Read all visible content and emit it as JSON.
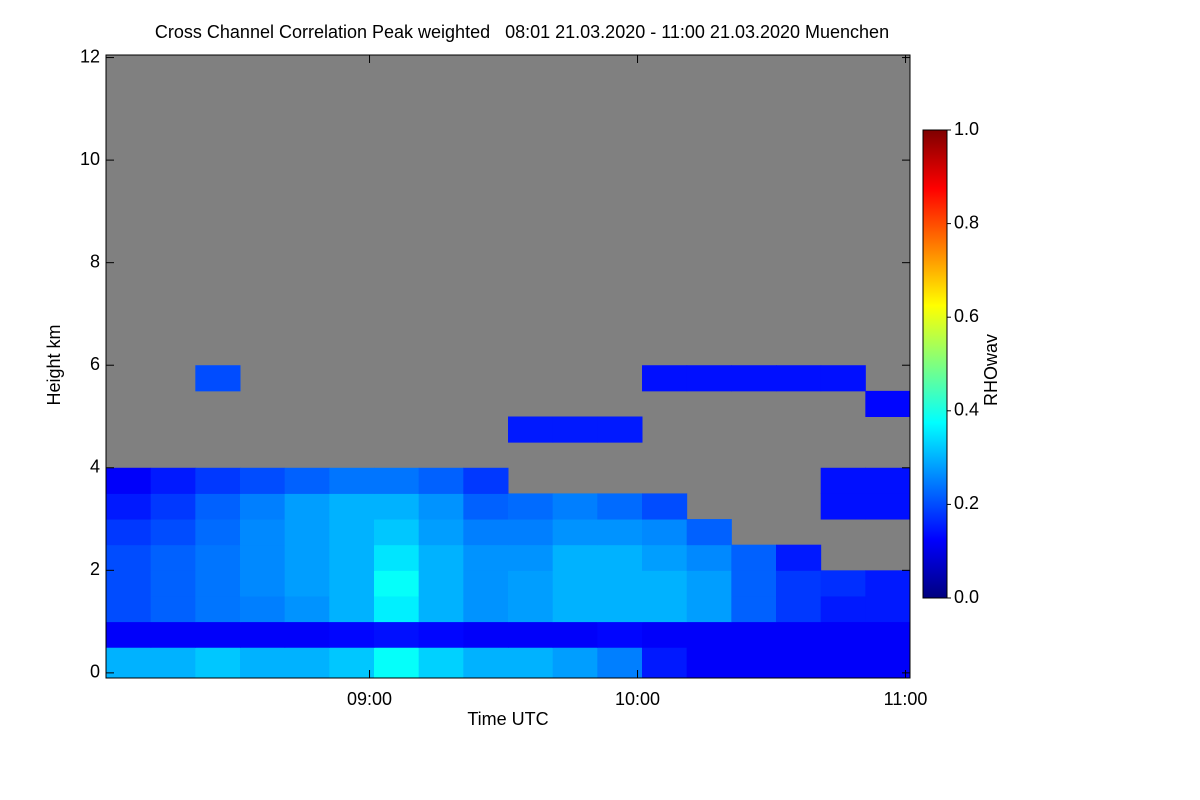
{
  "chart_data": {
    "type": "heatmap",
    "title": "Cross Channel Correlation Peak weighted   08:01 21.03.2020 - 11:00 21.03.2020 Muenchen",
    "xlabel": "Time UTC",
    "ylabel": "Height km",
    "colorbar_label": "RHOwav",
    "xlim": [
      481,
      661
    ],
    "ylim": [
      -0.1,
      12.05
    ],
    "xticks": [
      {
        "value": 540,
        "label": "09:00"
      },
      {
        "value": 600,
        "label": "10:00"
      },
      {
        "value": 660,
        "label": "11:00"
      }
    ],
    "yticks": [
      0,
      2,
      4,
      6,
      8,
      10,
      12
    ],
    "clim": [
      0,
      1
    ],
    "cticks": [
      {
        "value": 0,
        "label": "0.0"
      },
      {
        "value": 0.2,
        "label": "0.2"
      },
      {
        "value": 0.4,
        "label": "0.4"
      },
      {
        "value": 0.6,
        "label": "0.6"
      },
      {
        "value": 0.8,
        "label": "0.8"
      },
      {
        "value": 1,
        "label": "1.0"
      }
    ],
    "colormap": [
      "#00007f",
      "#0000ff",
      "#007fff",
      "#00ffff",
      "#7fff7f",
      "#ffff00",
      "#ff7f00",
      "#ff0000",
      "#7f0000"
    ],
    "missing_color": "#808080",
    "xbins": [
      481,
      491,
      501,
      511,
      521,
      531,
      541,
      551,
      561,
      571,
      581,
      591,
      601,
      611,
      621,
      631,
      641,
      651,
      661
    ],
    "ybins": [
      -0.1,
      0.5,
      1,
      1.5,
      2,
      2.5,
      3,
      3.5,
      4,
      4.5,
      5,
      5.5,
      6,
      6.5,
      7,
      7.5,
      8,
      8.5,
      9,
      9.5,
      10,
      10.5,
      11,
      11.5,
      12.05
    ],
    "z": [
      [
        0.3,
        0.3,
        0.32,
        0.3,
        0.3,
        0.32,
        0.38,
        0.33,
        0.3,
        0.3,
        0.28,
        0.25,
        0.15,
        0.12,
        0.12,
        0.12,
        0.12,
        0.12
      ],
      [
        0.12,
        0.12,
        0.12,
        0.12,
        0.12,
        0.13,
        0.14,
        0.13,
        0.12,
        0.12,
        0.12,
        0.13,
        0.12,
        0.12,
        0.12,
        0.12,
        0.12,
        0.12
      ],
      [
        0.2,
        0.22,
        0.24,
        0.25,
        0.27,
        0.3,
        0.36,
        0.3,
        0.27,
        0.28,
        0.3,
        0.3,
        0.3,
        0.28,
        0.22,
        0.18,
        0.15,
        0.15
      ],
      [
        0.2,
        0.22,
        0.24,
        0.26,
        0.28,
        0.3,
        0.38,
        0.3,
        0.27,
        0.28,
        0.3,
        0.3,
        0.3,
        0.28,
        0.22,
        0.18,
        0.17,
        0.15
      ],
      [
        0.2,
        0.22,
        0.24,
        0.26,
        0.28,
        0.3,
        0.35,
        0.3,
        0.27,
        0.27,
        0.3,
        0.3,
        0.28,
        0.26,
        0.22,
        0.15,
        null,
        null
      ],
      [
        0.18,
        0.2,
        0.23,
        0.26,
        0.28,
        0.3,
        0.32,
        0.28,
        0.25,
        0.25,
        0.27,
        0.27,
        0.26,
        0.22,
        null,
        null,
        null,
        null
      ],
      [
        0.15,
        0.18,
        0.22,
        0.25,
        0.28,
        0.3,
        0.3,
        0.27,
        0.22,
        0.23,
        0.25,
        0.23,
        0.2,
        null,
        null,
        null,
        0.14,
        0.14
      ],
      [
        0.12,
        0.15,
        0.18,
        0.2,
        0.22,
        0.24,
        0.24,
        0.22,
        0.18,
        null,
        null,
        null,
        null,
        null,
        null,
        null,
        0.14,
        0.14
      ],
      [
        null,
        null,
        null,
        null,
        null,
        null,
        null,
        null,
        null,
        null,
        null,
        null,
        null,
        null,
        null,
        null,
        null,
        null
      ],
      [
        null,
        null,
        null,
        null,
        null,
        null,
        null,
        null,
        null,
        0.15,
        0.15,
        0.15,
        null,
        null,
        null,
        null,
        null,
        null
      ],
      [
        null,
        null,
        null,
        null,
        null,
        null,
        null,
        null,
        null,
        null,
        null,
        null,
        null,
        null,
        null,
        null,
        null,
        0.13
      ],
      [
        null,
        null,
        0.2,
        null,
        null,
        null,
        null,
        null,
        null,
        null,
        null,
        null,
        0.14,
        0.14,
        0.14,
        0.14,
        0.14,
        null
      ],
      [
        null,
        null,
        null,
        null,
        null,
        null,
        null,
        null,
        null,
        null,
        null,
        null,
        null,
        null,
        null,
        null,
        null,
        null
      ],
      [
        null,
        null,
        null,
        null,
        null,
        null,
        null,
        null,
        null,
        null,
        null,
        null,
        null,
        null,
        null,
        null,
        null,
        null
      ],
      [
        null,
        null,
        null,
        null,
        null,
        null,
        null,
        null,
        null,
        null,
        null,
        null,
        null,
        null,
        null,
        null,
        null,
        null
      ],
      [
        null,
        null,
        null,
        null,
        null,
        null,
        null,
        null,
        null,
        null,
        null,
        null,
        null,
        null,
        null,
        null,
        null,
        null
      ],
      [
        null,
        null,
        null,
        null,
        null,
        null,
        null,
        null,
        null,
        null,
        null,
        null,
        null,
        null,
        null,
        null,
        null,
        null
      ],
      [
        null,
        null,
        null,
        null,
        null,
        null,
        null,
        null,
        null,
        null,
        null,
        null,
        null,
        null,
        null,
        null,
        null,
        null
      ],
      [
        null,
        null,
        null,
        null,
        null,
        null,
        null,
        null,
        null,
        null,
        null,
        null,
        null,
        null,
        null,
        null,
        null,
        null
      ],
      [
        null,
        null,
        null,
        null,
        null,
        null,
        null,
        null,
        null,
        null,
        null,
        null,
        null,
        null,
        null,
        null,
        null,
        null
      ],
      [
        null,
        null,
        null,
        null,
        null,
        null,
        null,
        null,
        null,
        null,
        null,
        null,
        null,
        null,
        null,
        null,
        null,
        null
      ],
      [
        null,
        null,
        null,
        null,
        null,
        null,
        null,
        null,
        null,
        null,
        null,
        null,
        null,
        null,
        null,
        null,
        null,
        null
      ],
      [
        null,
        null,
        null,
        null,
        null,
        null,
        null,
        null,
        null,
        null,
        null,
        null,
        null,
        null,
        null,
        null,
        null,
        null
      ],
      [
        null,
        null,
        null,
        null,
        null,
        null,
        null,
        null,
        null,
        null,
        null,
        null,
        null,
        null,
        null,
        null,
        null,
        null
      ]
    ]
  }
}
